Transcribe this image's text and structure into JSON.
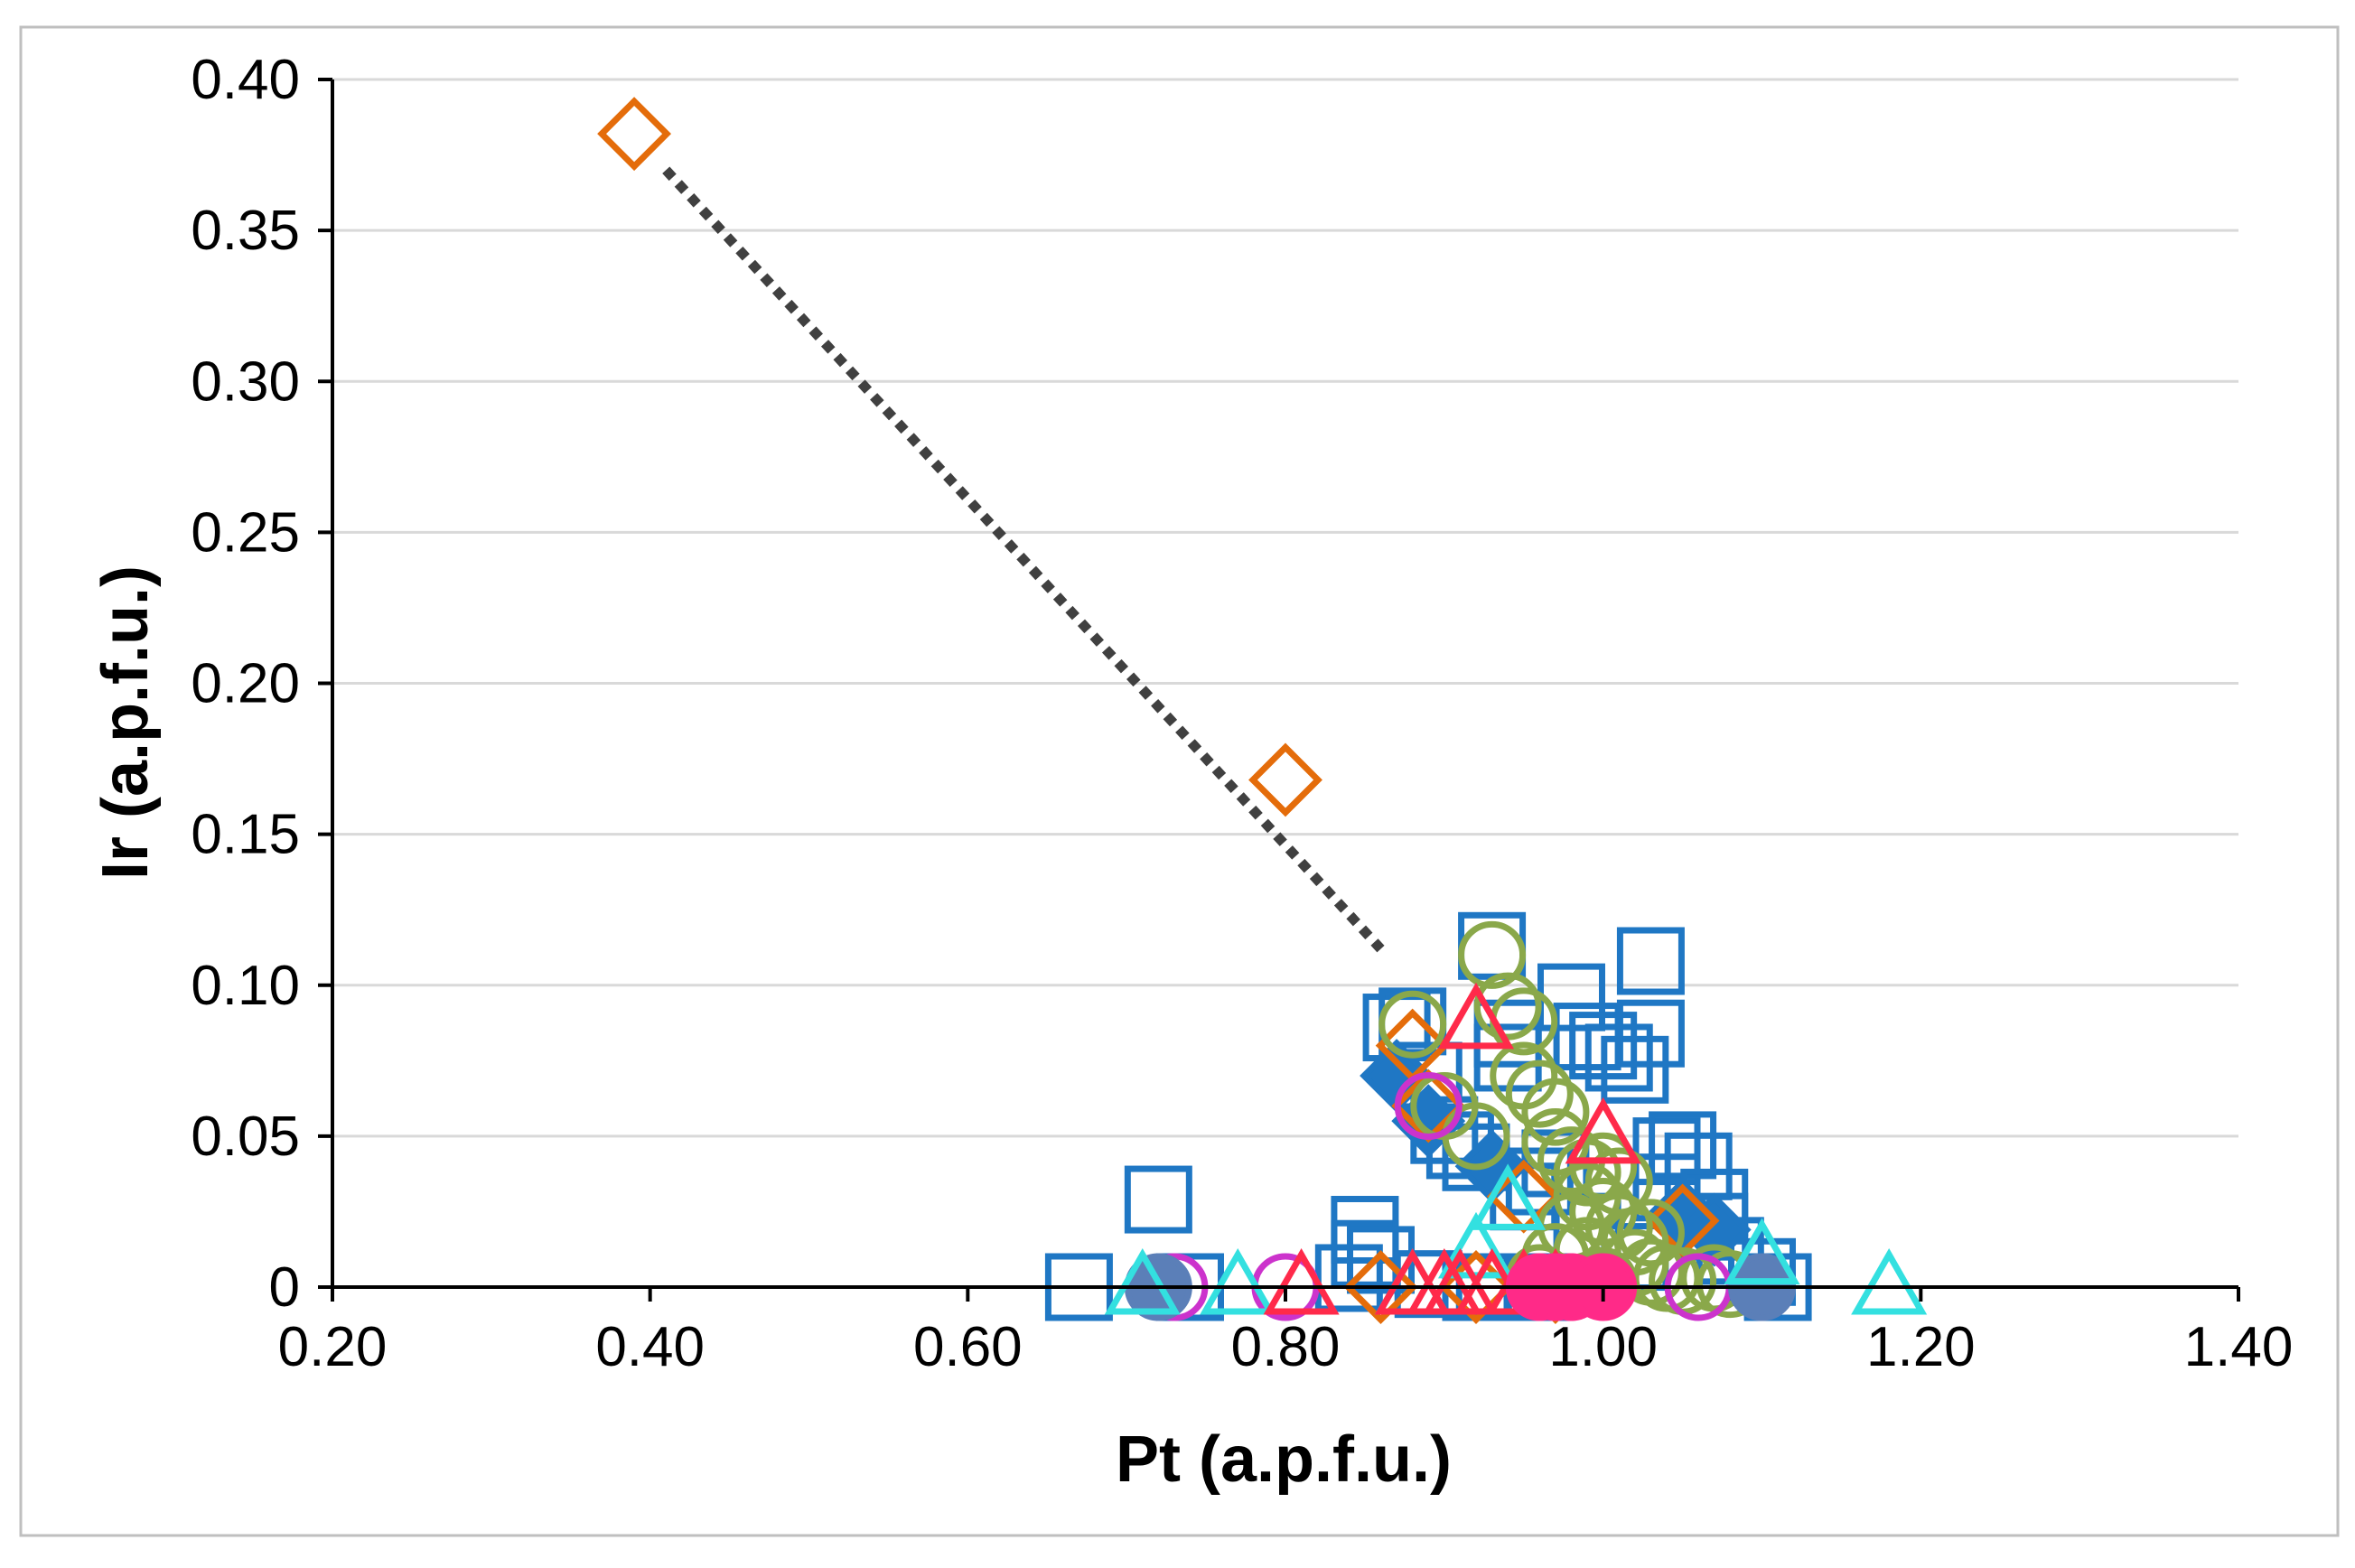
{
  "chart_data": {
    "type": "scatter",
    "title": "",
    "xlabel": "Pt (a.p.f.u.)",
    "ylabel": "Ir (a.p.f.u.)",
    "xlim": [
      0.2,
      1.4
    ],
    "ylim": [
      0,
      0.4
    ],
    "grid": "horizontal",
    "x_ticks": [
      {
        "value": 0.2,
        "label": "0.20"
      },
      {
        "value": 0.4,
        "label": "0.40"
      },
      {
        "value": 0.6,
        "label": "0.60"
      },
      {
        "value": 0.8,
        "label": "0.80"
      },
      {
        "value": 1.0,
        "label": "1.00"
      },
      {
        "value": 1.2,
        "label": "1.20"
      },
      {
        "value": 1.4,
        "label": "1.40"
      }
    ],
    "y_ticks": [
      {
        "value": 0,
        "label": "0"
      },
      {
        "value": 0.05,
        "label": "0.05"
      },
      {
        "value": 0.1,
        "label": "0.10"
      },
      {
        "value": 0.15,
        "label": "0.15"
      },
      {
        "value": 0.2,
        "label": "0.20"
      },
      {
        "value": 0.25,
        "label": "0.25"
      },
      {
        "value": 0.3,
        "label": "0.30"
      },
      {
        "value": 0.35,
        "label": "0.35"
      },
      {
        "value": 0.4,
        "label": "0.40"
      }
    ],
    "trendline": {
      "style": "dotted",
      "color": "#404040",
      "from": [
        0.41,
        0.37
      ],
      "to": [
        0.86,
        0.112
      ]
    },
    "series": [
      {
        "name": "open squares",
        "marker": "square",
        "filled": false,
        "color": "#1f77c4",
        "points": [
          [
            0.67,
            0.0
          ],
          [
            0.72,
            0.029
          ],
          [
            0.74,
            0.0
          ],
          [
            0.84,
            0.003
          ],
          [
            0.85,
            0.011
          ],
          [
            0.85,
            0.019
          ],
          [
            0.86,
            0.009
          ],
          [
            0.87,
            0.086
          ],
          [
            0.88,
            0.088
          ],
          [
            0.89,
            0.001
          ],
          [
            0.89,
            0.07
          ],
          [
            0.9,
            0.052
          ],
          [
            0.91,
            0.047
          ],
          [
            0.92,
            0.043
          ],
          [
            0.93,
            0.113
          ],
          [
            0.94,
            0.076
          ],
          [
            0.94,
            0.084
          ],
          [
            0.95,
            0.03
          ],
          [
            0.96,
            0.035
          ],
          [
            0.97,
            0.041
          ],
          [
            0.98,
            0.096
          ],
          [
            0.99,
            0.083
          ],
          [
            1.0,
            0.08
          ],
          [
            1.01,
            0.076
          ],
          [
            1.02,
            0.072
          ],
          [
            1.03,
            0.084
          ],
          [
            1.03,
            0.108
          ],
          [
            1.04,
            0.045
          ],
          [
            1.04,
            0.033
          ],
          [
            1.05,
            0.047
          ],
          [
            1.06,
            0.04
          ],
          [
            1.07,
            0.028
          ],
          [
            1.07,
            0.02
          ],
          [
            1.08,
            0.012
          ],
          [
            1.1,
            0.005
          ],
          [
            1.11,
            0.0
          ],
          [
            0.96,
            0.0
          ],
          [
            0.99,
            0.02
          ],
          [
            1.02,
            0.01
          ],
          [
            0.92,
            0.0
          ]
        ]
      },
      {
        "name": "filled diamonds",
        "marker": "diamond",
        "filled": true,
        "color": "#1f77c4",
        "points": [
          [
            0.87,
            0.07
          ],
          [
            0.89,
            0.055
          ],
          [
            0.93,
            0.04
          ],
          [
            1.05,
            0.024
          ],
          [
            1.07,
            0.019
          ]
        ]
      },
      {
        "name": "open diamonds",
        "marker": "diamond",
        "filled": false,
        "color": "#e46c0a",
        "points": [
          [
            0.39,
            0.382
          ],
          [
            0.8,
            0.168
          ],
          [
            0.88,
            0.08
          ],
          [
            0.89,
            0.06
          ],
          [
            0.86,
            0.0
          ],
          [
            0.92,
            0.0
          ],
          [
            0.95,
            0.03
          ],
          [
            1.05,
            0.022
          ],
          [
            0.97,
            0.0
          ]
        ]
      },
      {
        "name": "open circles green",
        "marker": "circle",
        "filled": false,
        "color": "#8aa84a",
        "points": [
          [
            0.88,
            0.087
          ],
          [
            0.9,
            0.06
          ],
          [
            0.92,
            0.05
          ],
          [
            0.93,
            0.11
          ],
          [
            0.94,
            0.093
          ],
          [
            0.95,
            0.088
          ],
          [
            0.95,
            0.07
          ],
          [
            0.96,
            0.064
          ],
          [
            0.97,
            0.058
          ],
          [
            0.97,
            0.048
          ],
          [
            0.98,
            0.042
          ],
          [
            0.99,
            0.038
          ],
          [
            0.99,
            0.03
          ],
          [
            1.0,
            0.025
          ],
          [
            1.0,
            0.04
          ],
          [
            1.01,
            0.035
          ],
          [
            1.01,
            0.02
          ],
          [
            1.02,
            0.015
          ],
          [
            1.02,
            0.008
          ],
          [
            1.03,
            0.005
          ],
          [
            1.04,
            0.003
          ],
          [
            1.05,
            0.002
          ],
          [
            0.98,
            0.02
          ],
          [
            0.97,
            0.01
          ],
          [
            0.96,
            0.003
          ],
          [
            1.0,
            0.002
          ],
          [
            1.07,
            0.003
          ],
          [
            1.08,
            0.001
          ],
          [
            0.99,
            0.012
          ],
          [
            1.03,
            0.018
          ]
        ]
      },
      {
        "name": "open circles magenta",
        "marker": "circle",
        "filled": false,
        "color": "#cc33cc",
        "points": [
          [
            0.73,
            0.0
          ],
          [
            0.8,
            0.0
          ],
          [
            0.89,
            0.06
          ],
          [
            0.97,
            0.0
          ],
          [
            1.06,
            0.0
          ]
        ]
      },
      {
        "name": "filled circles",
        "marker": "circle",
        "filled": true,
        "color": "#5b7fb8",
        "points": [
          [
            0.72,
            0.0
          ],
          [
            1.1,
            0.0
          ]
        ]
      },
      {
        "name": "open triangles cyan",
        "marker": "triangle",
        "filled": false,
        "color": "#33e0e0",
        "points": [
          [
            0.71,
            0.0
          ],
          [
            0.77,
            0.0
          ],
          [
            0.88,
            0.0
          ],
          [
            0.92,
            0.012
          ],
          [
            0.94,
            0.028
          ],
          [
            1.1,
            0.01
          ],
          [
            1.18,
            0.0
          ]
        ]
      },
      {
        "name": "open triangles red",
        "marker": "triangle",
        "filled": false,
        "color": "#ff2a4a",
        "points": [
          [
            0.81,
            0.0
          ],
          [
            0.88,
            0.0
          ],
          [
            0.9,
            0.0
          ],
          [
            0.91,
            0.0
          ],
          [
            0.93,
            0.0
          ],
          [
            0.95,
            0.0
          ],
          [
            0.97,
            0.0
          ],
          [
            0.92,
            0.088
          ],
          [
            1.0,
            0.05
          ]
        ]
      },
      {
        "name": "filled circles pink",
        "marker": "circle",
        "filled": true,
        "color": "#ff2a88",
        "points": [
          [
            0.96,
            0.0
          ],
          [
            0.98,
            0.0
          ],
          [
            1.0,
            0.0
          ],
          [
            0.97,
            0.0
          ]
        ]
      }
    ]
  }
}
